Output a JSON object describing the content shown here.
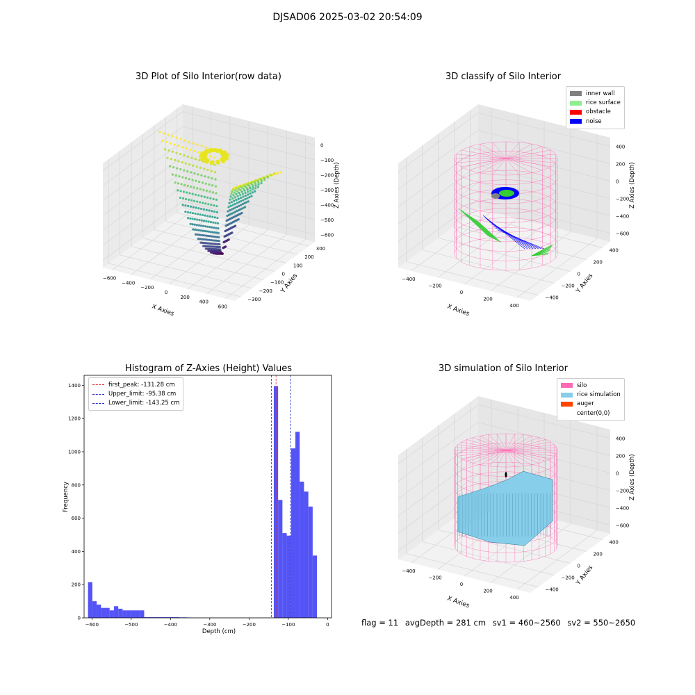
{
  "suptitle": "DJSAD06 2025-03-02 20:54:09",
  "footer": {
    "flag": "flag = 11",
    "avg": "avgDepth = 281 cm",
    "sv1": "sv1 = 460~2560",
    "sv2": "sv2 = 550~2650"
  },
  "colors": {
    "histogram_bar": "#4b4bf5",
    "first_peak": "#e03030",
    "limits": "#2a2ad0",
    "silo_wire": "#ff69b4",
    "rice_simulation": "#87ceeb",
    "auger": "#ff4500",
    "inner_wall": "#808080",
    "rice_surface": "#90ee90",
    "obstacle": "#ff0000",
    "noise": "#0000ff"
  },
  "plot1": {
    "title": "3D Plot of Silo Interior(row data)",
    "xlabel": "X Axies",
    "ylabel": "Y Axies",
    "zlabel": "Z Axies (Depth)",
    "xticks": [
      "−600",
      "−400",
      "−200",
      "0",
      "200",
      "400",
      "600"
    ],
    "yticks": [
      "300",
      "200",
      "100",
      "0",
      "−100",
      "−200",
      "−300"
    ],
    "zticks": [
      "0",
      "−100",
      "−200",
      "−300",
      "−400",
      "−500",
      "−600"
    ]
  },
  "plot2": {
    "title": "3D classify of Silo Interior",
    "xlabel": "X Axies",
    "ylabel": "Y Axies",
    "zlabel": "Z Axies (Depth)",
    "xticks": [
      "−400",
      "−200",
      "0",
      "200",
      "400"
    ],
    "yticks": [
      "400",
      "200",
      "0",
      "−200",
      "−400"
    ],
    "zticks": [
      "400",
      "200",
      "0",
      "−200",
      "−400",
      "−600"
    ],
    "legend": [
      "inner wall",
      "rice surface",
      "obstacle",
      "noise"
    ]
  },
  "plot4": {
    "title": "3D simulation of Silo Interior",
    "xlabel": "X Axies",
    "ylabel": "Y Axies",
    "zlabel": "Z Axies (Depth)",
    "xticks": [
      "−400",
      "−200",
      "0",
      "200",
      "400"
    ],
    "yticks": [
      "400",
      "200",
      "0",
      "−200",
      "−400"
    ],
    "zticks": [
      "400",
      "200",
      "0",
      "−200",
      "−400",
      "−600"
    ],
    "legend": [
      "silo",
      "rice simulation",
      "auger",
      "center(0,0)"
    ]
  },
  "chart_data": {
    "type": "bar",
    "title": "Histogram of Z-Axies (Height) Values",
    "xlabel": "Depth (cm)",
    "ylabel": "Frequency",
    "xlim": [
      -620,
      10
    ],
    "ylim": [
      0,
      1460
    ],
    "xticks": [
      "−600",
      "−500",
      "−400",
      "−300",
      "−200",
      "−100",
      "0"
    ],
    "yticks": [
      "0",
      "200",
      "400",
      "600",
      "800",
      "1000",
      "1200",
      "1400"
    ],
    "grid": false,
    "legend_position": "top-left",
    "bins": [
      {
        "x0": -610,
        "x1": -599,
        "count": 215
      },
      {
        "x0": -599,
        "x1": -588,
        "count": 100
      },
      {
        "x0": -588,
        "x1": -577,
        "count": 80
      },
      {
        "x0": -577,
        "x1": -566,
        "count": 60
      },
      {
        "x0": -566,
        "x1": -555,
        "count": 60
      },
      {
        "x0": -555,
        "x1": -544,
        "count": 45
      },
      {
        "x0": -544,
        "x1": -533,
        "count": 70
      },
      {
        "x0": -533,
        "x1": -522,
        "count": 55
      },
      {
        "x0": -522,
        "x1": -511,
        "count": 45
      },
      {
        "x0": -511,
        "x1": -500,
        "count": 45
      },
      {
        "x0": -500,
        "x1": -489,
        "count": 45
      },
      {
        "x0": -489,
        "x1": -478,
        "count": 45
      },
      {
        "x0": -478,
        "x1": -467,
        "count": 45
      },
      {
        "x0": -467,
        "x1": -456,
        "count": 4
      },
      {
        "x0": -456,
        "x1": -445,
        "count": 4
      },
      {
        "x0": -445,
        "x1": -434,
        "count": 4
      },
      {
        "x0": -434,
        "x1": -423,
        "count": 4
      },
      {
        "x0": -423,
        "x1": -412,
        "count": 4
      },
      {
        "x0": -412,
        "x1": -401,
        "count": 4
      },
      {
        "x0": -401,
        "x1": -390,
        "count": 4
      },
      {
        "x0": -390,
        "x1": -379,
        "count": 4
      },
      {
        "x0": -379,
        "x1": -368,
        "count": 3
      },
      {
        "x0": -368,
        "x1": -357,
        "count": 3
      },
      {
        "x0": -357,
        "x1": -346,
        "count": 2
      },
      {
        "x0": -346,
        "x1": -335,
        "count": 1
      },
      {
        "x0": -335,
        "x1": -324,
        "count": 1
      },
      {
        "x0": -324,
        "x1": -313,
        "count": 1
      },
      {
        "x0": -313,
        "x1": -302,
        "count": 1
      },
      {
        "x0": -302,
        "x1": -291,
        "count": 1
      },
      {
        "x0": -291,
        "x1": -280,
        "count": 1
      },
      {
        "x0": -280,
        "x1": -269,
        "count": 1
      },
      {
        "x0": -269,
        "x1": -258,
        "count": 1
      },
      {
        "x0": -258,
        "x1": -247,
        "count": 1
      },
      {
        "x0": -247,
        "x1": -236,
        "count": 1
      },
      {
        "x0": -236,
        "x1": -225,
        "count": 1
      },
      {
        "x0": -225,
        "x1": -214,
        "count": 1
      },
      {
        "x0": -214,
        "x1": -203,
        "count": 1
      },
      {
        "x0": -203,
        "x1": -192,
        "count": 1
      },
      {
        "x0": -192,
        "x1": -181,
        "count": 1
      },
      {
        "x0": -181,
        "x1": -170,
        "count": 1
      },
      {
        "x0": -170,
        "x1": -159,
        "count": 1
      },
      {
        "x0": -159,
        "x1": -148,
        "count": 1
      },
      {
        "x0": -148,
        "x1": -137,
        "count": 1
      },
      {
        "x0": -137,
        "x1": -126,
        "count": 1395
      },
      {
        "x0": -126,
        "x1": -115,
        "count": 710
      },
      {
        "x0": -115,
        "x1": -104,
        "count": 510
      },
      {
        "x0": -104,
        "x1": -93,
        "count": 495
      },
      {
        "x0": -93,
        "x1": -82,
        "count": 1020
      },
      {
        "x0": -82,
        "x1": -71,
        "count": 1120
      },
      {
        "x0": -71,
        "x1": -60,
        "count": 820
      },
      {
        "x0": -60,
        "x1": -49,
        "count": 760
      },
      {
        "x0": -49,
        "x1": -38,
        "count": 670
      },
      {
        "x0": -38,
        "x1": -27,
        "count": 375
      }
    ],
    "lines": [
      {
        "name": "first_peak: -131.28 cm",
        "x": -131.28,
        "role": "first_peak"
      },
      {
        "name": "Upper_limit: -95.38 cm",
        "x": -95.38,
        "role": "limit"
      },
      {
        "name": "Lower_limit: -143.25 cm",
        "x": -143.25,
        "role": "limit"
      }
    ]
  }
}
